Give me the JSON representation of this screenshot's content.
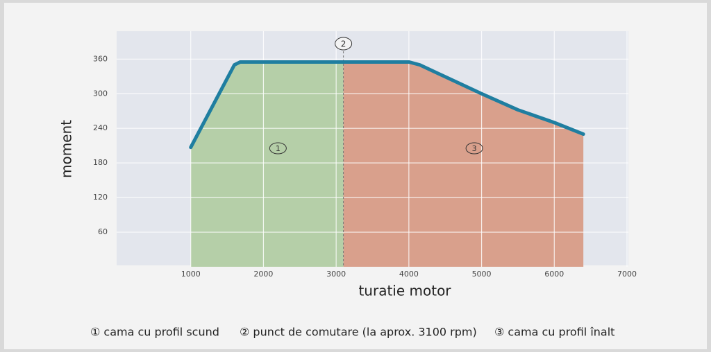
{
  "chart_data": {
    "type": "line",
    "x": [
      1000,
      1600,
      1680,
      4000,
      4150,
      5000,
      5500,
      6000,
      6400
    ],
    "values": [
      207,
      350,
      355,
      355,
      350,
      300,
      272,
      250,
      230
    ],
    "color": "#1f7ea0",
    "x_label": "turatie motor",
    "y_label": "moment",
    "xlim": [
      0,
      7000
    ],
    "xticks": [
      1000,
      2000,
      3000,
      4000,
      5000,
      6000,
      7000
    ],
    "ylim": [
      0,
      400
    ],
    "yticks": [
      60,
      120,
      180,
      240,
      300,
      360
    ],
    "grid": true,
    "regions": [
      {
        "x_range": [
          1000,
          3100
        ],
        "color": "#b5cfa8",
        "marker": "1"
      },
      {
        "x_range": [
          3100,
          6400
        ],
        "color": "#d9a08c",
        "marker": "3"
      }
    ],
    "switch": {
      "x": 3100,
      "marker": "2"
    },
    "legend": [
      "① cama cu profil scund",
      "② punct de comutare (la aprox. 3100 rpm)",
      "③ cama cu profil înalt"
    ]
  }
}
